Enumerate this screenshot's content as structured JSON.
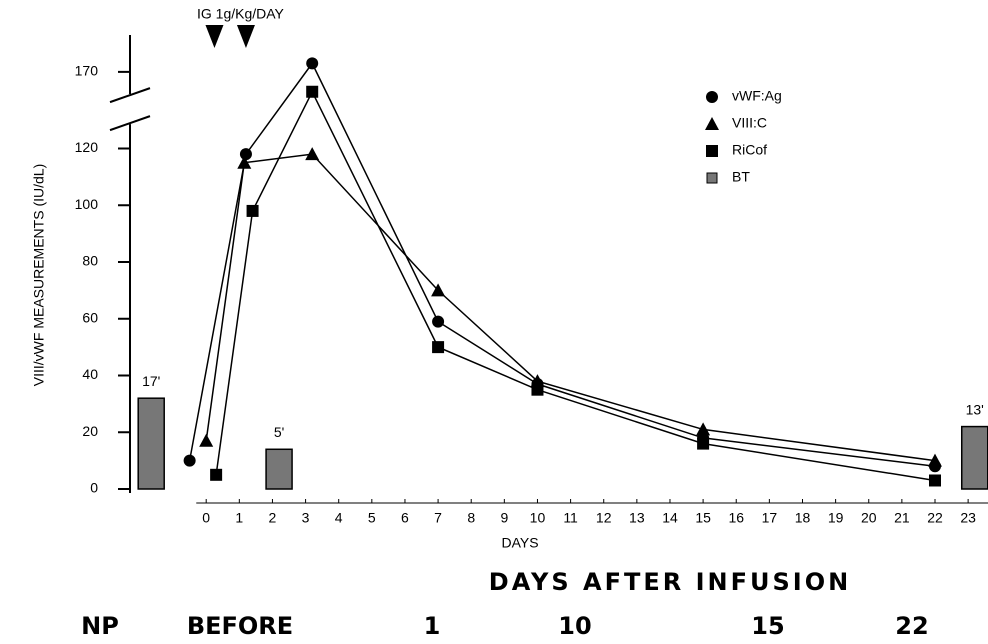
{
  "chart_data": {
    "type": "line",
    "annotation": "IG 1g/Kg/DAY",
    "infusion_x": [
      0.25,
      1.2
    ],
    "xlabel": "DAYS",
    "ylabel": "VIII/vWF MEASUREMENTS (IU/dL)",
    "xlim": [
      -2.3,
      23.6
    ],
    "xticks": [
      0,
      1,
      2,
      3,
      4,
      5,
      6,
      7,
      8,
      9,
      10,
      11,
      12,
      13,
      14,
      15,
      16,
      17,
      18,
      19,
      20,
      21,
      22,
      23
    ],
    "ylim": [
      0,
      183
    ],
    "ybreak": [
      130,
      153
    ],
    "yticks": [
      0,
      20,
      40,
      60,
      80,
      100,
      120,
      170
    ],
    "legend": "upper right",
    "series": [
      {
        "name": "vWF:Ag",
        "marker": "circle",
        "color": "#000000",
        "x": [
          -0.5,
          1.2,
          3.2,
          7,
          10,
          15,
          22
        ],
        "values": [
          10,
          118,
          173,
          59,
          37,
          18,
          8
        ]
      },
      {
        "name": "VIII:C",
        "marker": "triangle",
        "color": "#000000",
        "x": [
          0,
          1.15,
          3.2,
          7,
          10,
          15,
          22
        ],
        "values": [
          17,
          115,
          118,
          70,
          38,
          21,
          10
        ]
      },
      {
        "name": "RiCof",
        "marker": "square",
        "color": "#000000",
        "x": [
          0.3,
          1.4,
          3.2,
          7,
          10,
          15,
          22
        ],
        "values": [
          5,
          98,
          163,
          50,
          35,
          16,
          3
        ]
      },
      {
        "name": "BT",
        "marker": "bar",
        "color": "#777777",
        "x": [
          -1.66,
          2.2,
          23.2
        ],
        "values": [
          32,
          14,
          22
        ],
        "value_labels": [
          "17'",
          "5'",
          "13'"
        ]
      }
    ],
    "footer": {
      "heading": "DAYS AFTER INFUSION",
      "labels": [
        "NP",
        "BEFORE",
        "1",
        "10",
        "15",
        "22"
      ]
    }
  }
}
